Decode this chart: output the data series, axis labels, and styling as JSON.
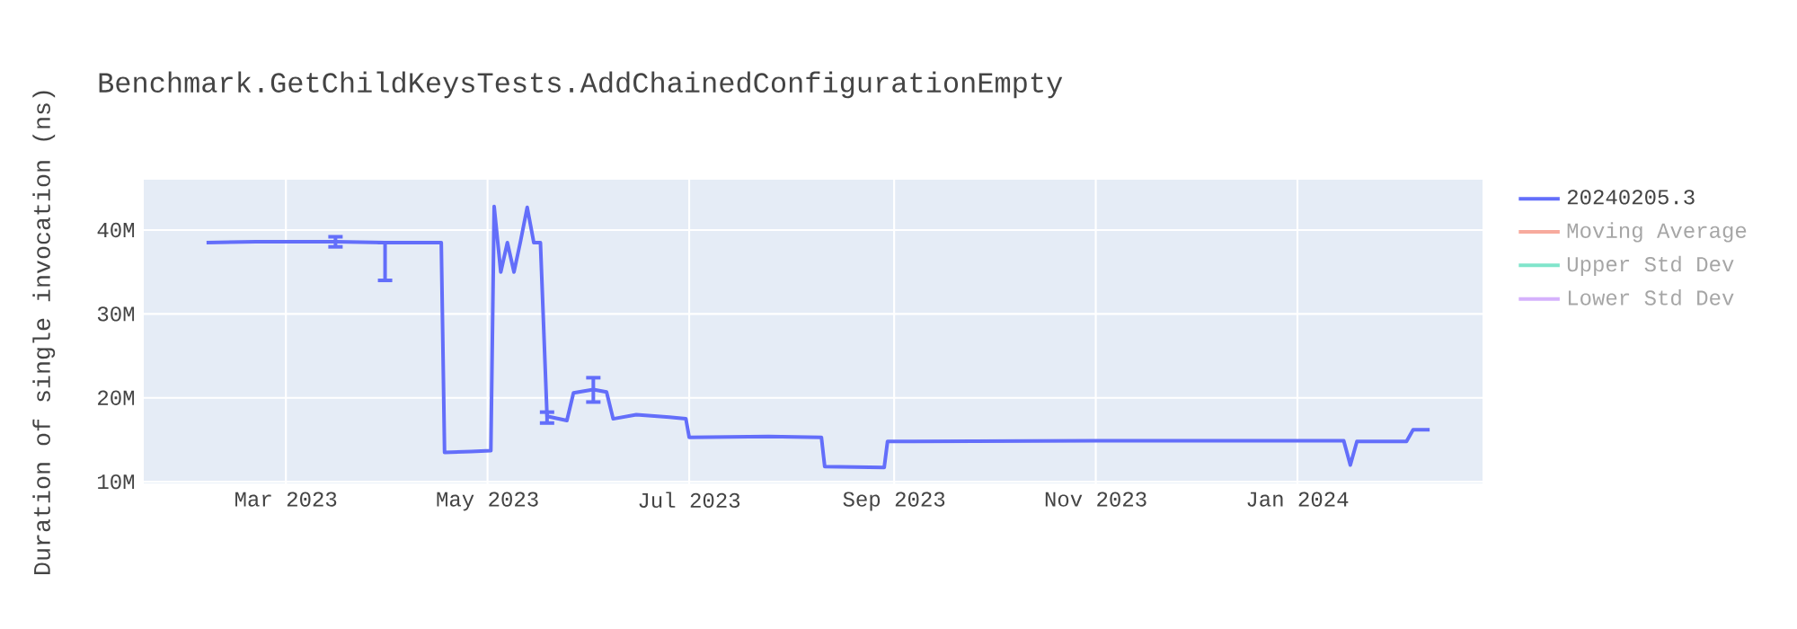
{
  "chart_data": {
    "type": "line",
    "title": "Benchmark.GetChildKeysTests.AddChainedConfigurationEmpty",
    "ylabel": "Duration of single invocation (ns)",
    "x": [
      "2023-02-05",
      "2023-02-20",
      "2023-03-16",
      "2023-03-31",
      "2023-04-17",
      "2023-04-18",
      "2023-04-26",
      "2023-05-02",
      "2023-05-03",
      "2023-05-05",
      "2023-05-07",
      "2023-05-09",
      "2023-05-11",
      "2023-05-13",
      "2023-05-15",
      "2023-05-17",
      "2023-05-19",
      "2023-05-25",
      "2023-05-27",
      "2023-06-02",
      "2023-06-06",
      "2023-06-08",
      "2023-06-15",
      "2023-06-25",
      "2023-06-30",
      "2023-07-01",
      "2023-07-25",
      "2023-08-10",
      "2023-08-11",
      "2023-08-29",
      "2023-08-30",
      "2023-11-01",
      "2024-01-15",
      "2024-01-17",
      "2024-01-19",
      "2024-02-03",
      "2024-02-05",
      "2024-02-10"
    ],
    "series": [
      {
        "name": "20240205.3",
        "color": "#636efa",
        "values": [
          38500000,
          38600000,
          38600000,
          38500000,
          38500000,
          13500000,
          13600000,
          13700000,
          42800000,
          35000000,
          38500000,
          35000000,
          38700000,
          42700000,
          38500000,
          38500000,
          17800000,
          17300000,
          20600000,
          21000000,
          20700000,
          17500000,
          18000000,
          17700000,
          17500000,
          15300000,
          15400000,
          15300000,
          11800000,
          11700000,
          14800000,
          14900000,
          14900000,
          12000000,
          14800000,
          14800000,
          16200000,
          16200000
        ],
        "errors": [
          null,
          null,
          [
            38000000,
            39200000
          ],
          [
            34000000,
            38500000
          ],
          null,
          null,
          null,
          null,
          null,
          null,
          null,
          null,
          null,
          null,
          null,
          null,
          [
            17000000,
            18300000
          ],
          null,
          null,
          [
            19500000,
            22400000
          ],
          null,
          null,
          null,
          null,
          null,
          null,
          null,
          null,
          null,
          null,
          null,
          null,
          null,
          null,
          null,
          null,
          null,
          null
        ]
      },
      {
        "name": "Moving Average",
        "color": "#f7aa9d",
        "values": [
          null,
          null,
          null,
          null,
          null,
          null,
          null,
          null,
          null,
          null,
          null,
          null,
          null,
          null,
          null,
          null,
          null,
          null,
          null,
          null,
          null,
          null,
          null,
          null,
          null,
          null,
          null,
          null,
          null,
          null,
          null,
          null,
          null,
          null,
          null,
          null,
          null,
          null
        ]
      },
      {
        "name": "Upper Std Dev",
        "color": "#80e5cb",
        "values": [
          null,
          null,
          null,
          null,
          null,
          null,
          null,
          null,
          null,
          null,
          null,
          null,
          null,
          null,
          null,
          null,
          null,
          null,
          null,
          null,
          null,
          null,
          null,
          null,
          null,
          null,
          null,
          null,
          null,
          null,
          null,
          null,
          null,
          null,
          null,
          null,
          null,
          null
        ]
      },
      {
        "name": "Lower Std Dev",
        "color": "#d5b1fc",
        "values": [
          null,
          null,
          null,
          null,
          null,
          null,
          null,
          null,
          null,
          null,
          null,
          null,
          null,
          null,
          null,
          null,
          null,
          null,
          null,
          null,
          null,
          null,
          null,
          null,
          null,
          null,
          null,
          null,
          null,
          null,
          null,
          null,
          null,
          null,
          null,
          null,
          null,
          null
        ]
      }
    ],
    "xlim": [
      "2023-01-17",
      "2024-02-26"
    ],
    "xticks": [
      {
        "value": "2023-03-01",
        "label": "Mar 2023"
      },
      {
        "value": "2023-05-01",
        "label": "May 2023"
      },
      {
        "value": "2023-07-01",
        "label": "Jul 2023"
      },
      {
        "value": "2023-09-01",
        "label": "Sep 2023"
      },
      {
        "value": "2023-11-01",
        "label": "Nov 2023"
      },
      {
        "value": "2024-01-01",
        "label": "Jan 2024"
      }
    ],
    "ylim": [
      9800000,
      46000000
    ],
    "yticks": [
      {
        "value": 10000000,
        "label": "10M"
      },
      {
        "value": 20000000,
        "label": "20M"
      },
      {
        "value": 30000000,
        "label": "30M"
      },
      {
        "value": 40000000,
        "label": "40M"
      }
    ],
    "grid": true,
    "legend": "top right",
    "marker": "none",
    "line_style": "solid"
  }
}
